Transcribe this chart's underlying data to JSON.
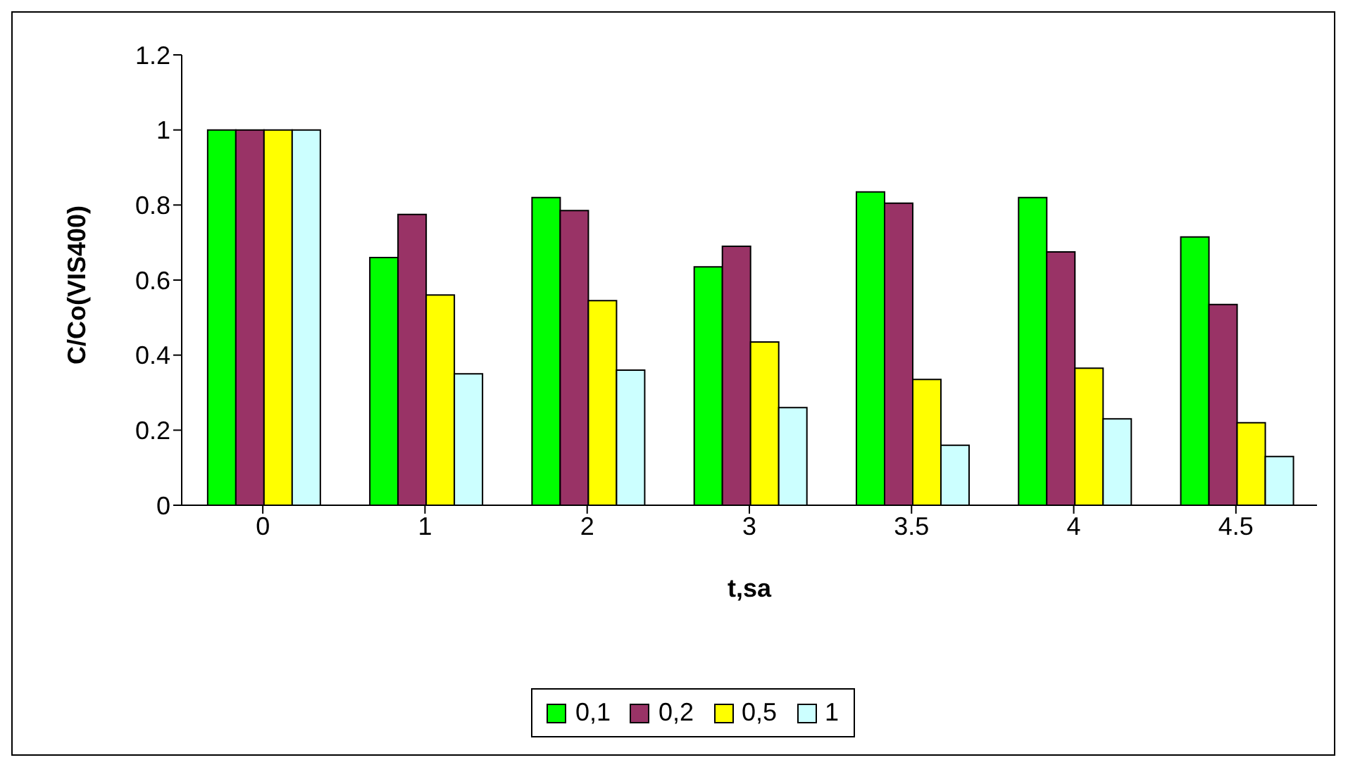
{
  "chart_data": {
    "type": "bar",
    "xlabel": "t,sa",
    "ylabel": "C/Co(VIS400)",
    "categories": [
      "0",
      "1",
      "2",
      "3",
      "3.5",
      "4",
      "4.5"
    ],
    "series": [
      {
        "name": "0,1",
        "color": "#00ff00",
        "values": [
          1,
          0.66,
          0.82,
          0.635,
          0.835,
          0.82,
          0.715
        ]
      },
      {
        "name": "0,2",
        "color": "#993366",
        "values": [
          1,
          0.775,
          0.785,
          0.69,
          0.805,
          0.675,
          0.535
        ]
      },
      {
        "name": "0,5",
        "color": "#ffff00",
        "values": [
          1,
          0.56,
          0.545,
          0.435,
          0.335,
          0.365,
          0.22
        ]
      },
      {
        "name": "1",
        "color": "#ccffff",
        "values": [
          1,
          0.35,
          0.36,
          0.26,
          0.16,
          0.23,
          0.13
        ]
      }
    ],
    "ylim": [
      0,
      1.2
    ],
    "yticks": [
      0,
      0.2,
      0.4,
      0.6,
      0.8,
      1,
      1.2
    ],
    "grid": false,
    "legend": "bottom"
  }
}
